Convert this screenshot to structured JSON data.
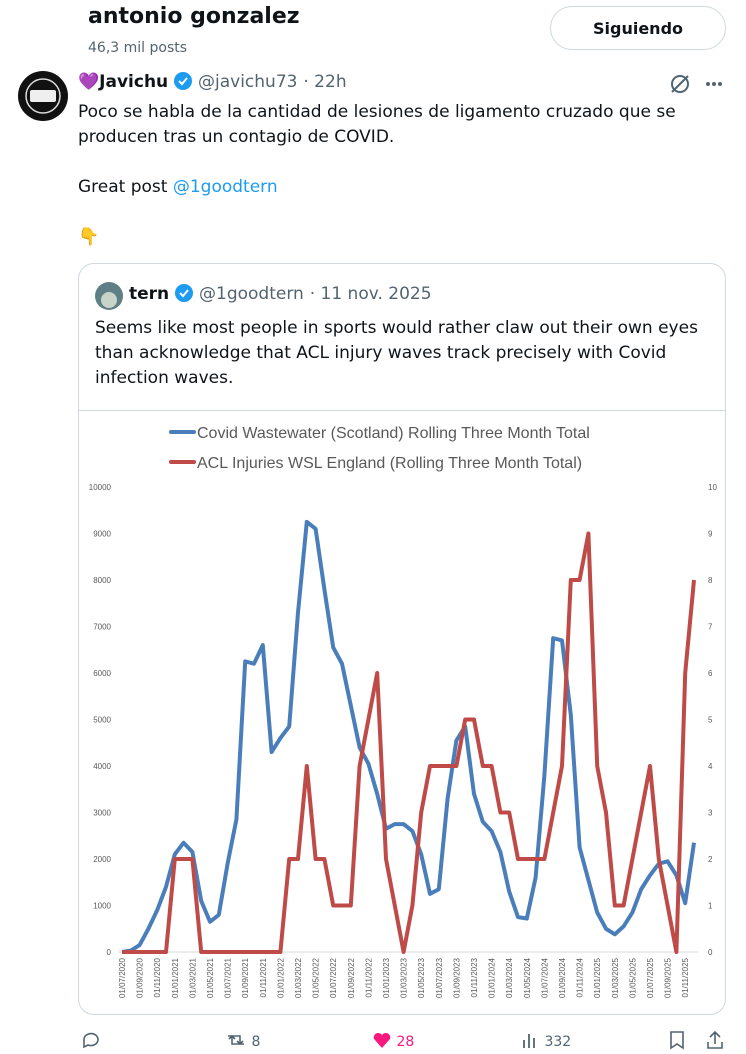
{
  "header": {
    "name": "antonio gonzalez",
    "posts": "46,3 mil posts",
    "follow_button": "Siguiendo"
  },
  "tweet": {
    "author": "💜Javichu",
    "handle": "@javichu73",
    "time": "· 22h",
    "text": "Poco se habla de la cantidad de lesiones de ligamento cruzado que se producen tras un contagio de COVID.",
    "text2": "Great post",
    "mention": "@1goodtern",
    "emoji": "👇",
    "quote": {
      "author": "tern",
      "handle": "@1goodtern",
      "date": "· 11 nov. 2025",
      "text": "Seems like most people in sports would rather claw out their own eyes than acknowledge that ACL injury waves track precisely with Covid infection waves.",
      "chart_data": {
        "type": "line",
        "categories": [
          "01/07/2020",
          null,
          "01/09/2020",
          null,
          "01/11/2020",
          null,
          "01/01/2021",
          null,
          "01/03/2021",
          null,
          "01/05/2021",
          null,
          "01/07/2021",
          null,
          "01/09/2021",
          null,
          "01/11/2021",
          null,
          "01/01/2022",
          null,
          "01/03/2022",
          null,
          "01/05/2022",
          null,
          "01/07/2022",
          null,
          "01/09/2022",
          null,
          "01/11/2022",
          null,
          "01/01/2023",
          null,
          "01/03/2023",
          null,
          "01/05/2023",
          null,
          "01/07/2023",
          null,
          "01/09/2023",
          null,
          "01/11/2023",
          null,
          "01/01/2024",
          null,
          "01/03/2024",
          null,
          "01/05/2024",
          null,
          "01/07/2024",
          null,
          "01/09/2024",
          null,
          "01/11/2024",
          null,
          "01/01/2025",
          null,
          "01/03/2025",
          null,
          "01/05/2025",
          null,
          "01/07/2025",
          null,
          "01/09/2025",
          null,
          "01/11/2025",
          null
        ],
        "series": [
          {
            "name": "Covid Wastewater (Scotland) Rolling Three Month Total",
            "color": "#4a7ebb",
            "values": [
              0,
              30,
              150,
              500,
              900,
              1400,
              2100,
              2350,
              2150,
              1100,
              650,
              800,
              1900,
              2850,
              6250,
              6200,
              6600,
              4300,
              4600,
              4850,
              7300,
              9250,
              9100,
              7800,
              6550,
              6200,
              5300,
              4400,
              4050,
              3400,
              2650,
              2750,
              2750,
              2600,
              2100,
              1250,
              1350,
              3300,
              4550,
              4850,
              3400,
              2800,
              2600,
              2150,
              1300,
              750,
              720,
              1600,
              3800,
              6750,
              6700,
              5100,
              2250,
              1550,
              850,
              500,
              380,
              550,
              850,
              1350,
              1650,
              1900,
              1950,
              1650,
              1050,
              2350
            ]
          },
          {
            "name": "ACL Injuries WSL England (Rolling Three Month Total)",
            "color": "#be4b48",
            "axis": "y2",
            "values": [
              0,
              0,
              0,
              0,
              0,
              0,
              2,
              2,
              2,
              0,
              0,
              0,
              0,
              0,
              0,
              0,
              0,
              0,
              0,
              2,
              2,
              4,
              2,
              2,
              1,
              1,
              1,
              4,
              5,
              6,
              2,
              1,
              0,
              1,
              3,
              4,
              4,
              4,
              4,
              5,
              5,
              4,
              4,
              3,
              3,
              2,
              2,
              2,
              2,
              3,
              4,
              8,
              8,
              9,
              4,
              3,
              1,
              1,
              2,
              3,
              4,
              2,
              1,
              0,
              6,
              8
            ]
          }
        ],
        "ylim": [
          0,
          10000
        ],
        "yticks": [
          0,
          1000,
          2000,
          3000,
          4000,
          5000,
          6000,
          7000,
          8000,
          9000,
          10000
        ],
        "y2lim": [
          0,
          10
        ],
        "y2ticks": [
          0,
          1,
          2,
          3,
          4,
          5,
          6,
          7,
          8,
          9,
          10
        ],
        "legend": "top"
      }
    }
  },
  "actions": {
    "retweets": "8",
    "likes": "28",
    "views": "332"
  }
}
